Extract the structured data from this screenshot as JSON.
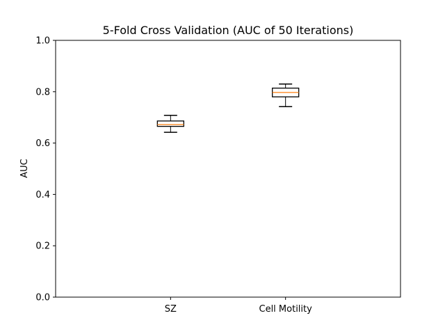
{
  "chart_data": {
    "type": "box",
    "title": "5-Fold Cross Validation (AUC of 50 Iterations)",
    "xlabel": "",
    "ylabel": "AUC",
    "ylim": [
      0.0,
      1.0
    ],
    "yticks": [
      "0.0",
      "0.2",
      "0.4",
      "0.6",
      "0.8",
      "1.0"
    ],
    "categories": [
      "SZ",
      "Cell Motility"
    ],
    "boxes": [
      {
        "label": "SZ",
        "whisker_low": 0.642,
        "q1": 0.665,
        "median": 0.672,
        "q3": 0.686,
        "whisker_high": 0.708
      },
      {
        "label": "Cell Motility",
        "whisker_low": 0.742,
        "q1": 0.78,
        "median": 0.797,
        "q3": 0.814,
        "whisker_high": 0.83
      }
    ],
    "grid": false,
    "colors": {
      "median": "#ff7f0e",
      "box": "#000000"
    }
  }
}
